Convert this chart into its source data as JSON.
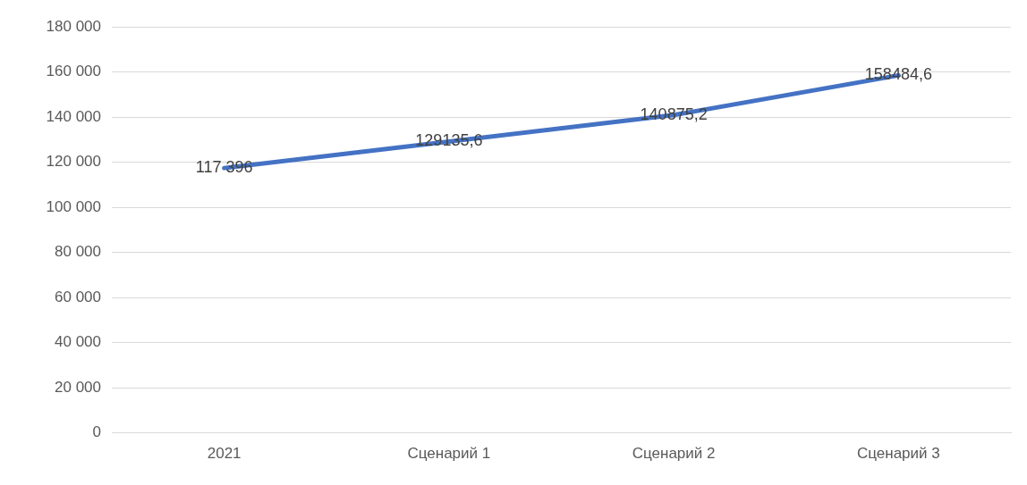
{
  "chart_data": {
    "type": "line",
    "categories": [
      "2021",
      "Сценарий 1",
      "Сценарий 2",
      "Сценарий 3"
    ],
    "series": [
      {
        "color": "#4472c4",
        "values": [
          117396,
          129135.6,
          140875.2,
          158484.6
        ],
        "value_labels": [
          "117 396",
          "129135,6",
          "140875,2",
          "158484,6"
        ]
      }
    ],
    "ylim": [
      0,
      180000
    ],
    "yticks": [
      {
        "value": 0,
        "label": "0"
      },
      {
        "value": 20000,
        "label": "20 000"
      },
      {
        "value": 40000,
        "label": "40 000"
      },
      {
        "value": 60000,
        "label": "60 000"
      },
      {
        "value": 80000,
        "label": "80 000"
      },
      {
        "value": 100000,
        "label": "100 000"
      },
      {
        "value": 120000,
        "label": "120 000"
      },
      {
        "value": 140000,
        "label": "140 000"
      },
      {
        "value": 160000,
        "label": "160 000"
      },
      {
        "value": 180000,
        "label": "180 000"
      }
    ],
    "grid": "y",
    "legend": false,
    "marker": "none",
    "line_style": "solid"
  }
}
